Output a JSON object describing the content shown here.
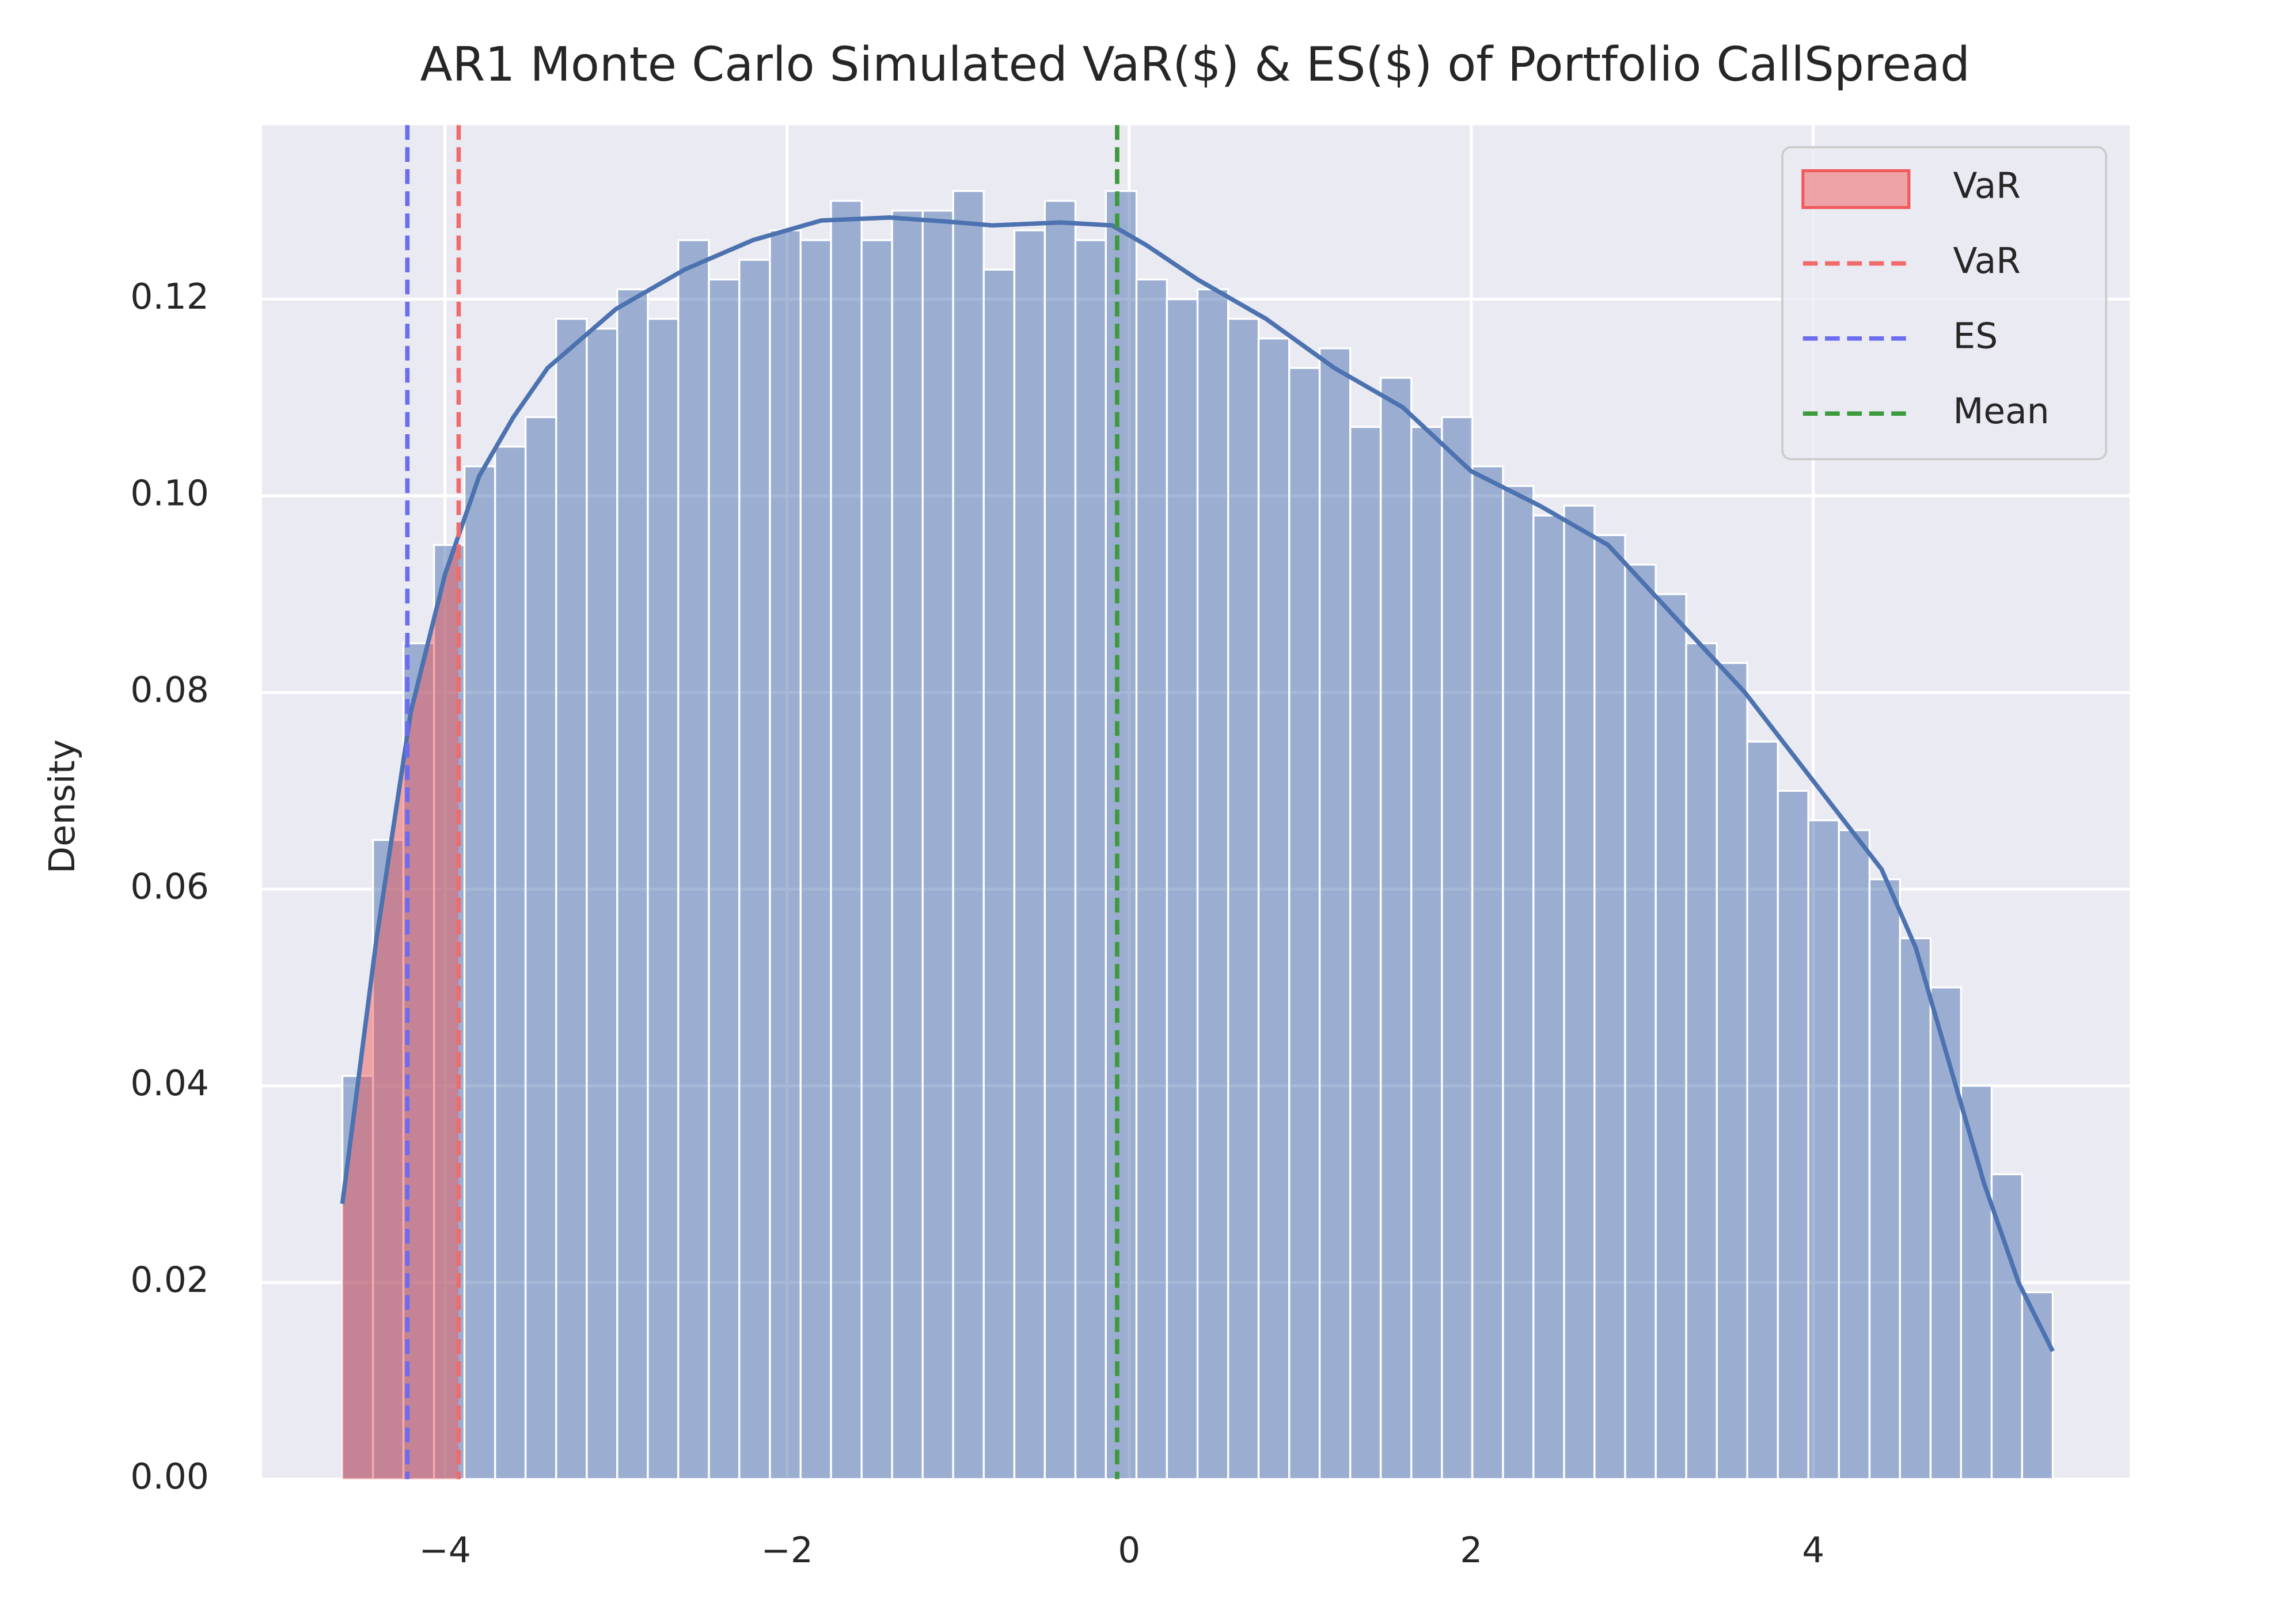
{
  "chart_data": {
    "type": "histogram",
    "title": "AR1 Monte Carlo Simulated VaR($) & ES($) of Portfolio CallSpread",
    "ylabel": "Density",
    "bins": [
      -4.6,
      -4.421,
      -4.243,
      -4.064,
      -3.886,
      -3.707,
      -3.529,
      -3.35,
      -3.171,
      -2.993,
      -2.814,
      -2.636,
      -2.457,
      -2.279,
      -2.1,
      -1.921,
      -1.743,
      -1.564,
      -1.386,
      -1.207,
      -1.029,
      -0.85,
      -0.671,
      -0.493,
      -0.314,
      -0.136,
      0.043,
      0.221,
      0.4,
      0.579,
      0.757,
      0.936,
      1.114,
      1.293,
      1.471,
      1.65,
      1.829,
      2.007,
      2.186,
      2.364,
      2.543,
      2.721,
      2.9,
      3.079,
      3.257,
      3.436,
      3.614,
      3.793,
      3.971,
      4.15,
      4.329,
      4.507,
      4.686,
      4.864,
      5.043,
      5.221,
      5.4
    ],
    "values": [
      0.041,
      0.065,
      0.085,
      0.095,
      0.103,
      0.105,
      0.108,
      0.118,
      0.117,
      0.121,
      0.118,
      0.126,
      0.122,
      0.124,
      0.127,
      0.126,
      0.13,
      0.126,
      0.129,
      0.129,
      0.131,
      0.123,
      0.127,
      0.13,
      0.126,
      0.131,
      0.122,
      0.12,
      0.121,
      0.118,
      0.116,
      0.113,
      0.115,
      0.107,
      0.112,
      0.107,
      0.108,
      0.103,
      0.101,
      0.098,
      0.099,
      0.096,
      0.093,
      0.09,
      0.085,
      0.083,
      0.075,
      0.07,
      0.067,
      0.066,
      0.061,
      0.055,
      0.05,
      0.04,
      0.031,
      0.019
    ],
    "color": "#4c72b0",
    "kde": {
      "color": "#4c72b0",
      "x": [
        -4.6,
        -4.4,
        -4.2,
        -4.0,
        -3.8,
        -3.6,
        -3.4,
        -3.0,
        -2.6,
        -2.2,
        -1.8,
        -1.4,
        -1.0,
        -0.8,
        -0.4,
        -0.1,
        0.1,
        0.4,
        0.8,
        1.2,
        1.6,
        2.0,
        2.4,
        2.8,
        3.2,
        3.6,
        4.0,
        4.4,
        4.6,
        4.8,
        5.0,
        5.2,
        5.4
      ],
      "values": [
        0.028,
        0.055,
        0.078,
        0.092,
        0.102,
        0.108,
        0.113,
        0.119,
        0.123,
        0.126,
        0.128,
        0.1283,
        0.1278,
        0.1275,
        0.1278,
        0.1275,
        0.1255,
        0.122,
        0.118,
        0.113,
        0.109,
        0.1025,
        0.099,
        0.095,
        0.0875,
        0.08,
        0.071,
        0.062,
        0.054,
        0.042,
        0.03,
        0.02,
        0.013
      ]
    },
    "shade": {
      "name": "VaR",
      "color": "#f05a5a"
    },
    "lines": [
      {
        "name": "VaR",
        "value": -3.92,
        "color": "#f06c6c"
      },
      {
        "name": "ES",
        "value": -4.22,
        "color": "#6c6cf0"
      },
      {
        "name": "Mean",
        "value": -0.07,
        "color": "#3c9a3c"
      }
    ],
    "xlim": [
      -5.07,
      5.85
    ],
    "xticks": [
      {
        "value": -4,
        "label": "−4"
      },
      {
        "value": -2,
        "label": "−2"
      },
      0,
      2,
      4
    ],
    "ylim": [
      0,
      0.1377
    ],
    "yticks": [
      {
        "value": 0,
        "label": "0.00"
      },
      {
        "value": 0.02,
        "label": "0.02"
      },
      {
        "value": 0.04,
        "label": "0.04"
      },
      {
        "value": 0.06,
        "label": "0.06"
      },
      {
        "value": 0.08,
        "label": "0.08"
      },
      {
        "value": 0.1,
        "label": "0.10"
      },
      {
        "value": 0.12,
        "label": "0.12"
      }
    ],
    "grid": true,
    "legend": "upper right"
  }
}
